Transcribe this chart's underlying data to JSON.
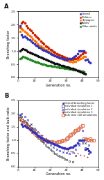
{
  "panel_A": {
    "title": "A",
    "xlabel": "Generation no.",
    "ylabel": "Branching factor",
    "xlim": [
      0,
      50
    ],
    "ylim": [
      0.0,
      2.5
    ],
    "yticks": [
      0.0,
      0.5,
      1.0,
      1.5,
      2.0,
      2.5
    ],
    "legend": [
      "Overall",
      "Children",
      "Teenagers",
      "Adults",
      "Older adults"
    ],
    "colors": [
      "#3333bb",
      "#cc2200",
      "#ff7700",
      "#111111",
      "#228822"
    ],
    "overall_x": [
      1,
      2,
      3,
      4,
      5,
      6,
      7,
      8,
      9,
      10,
      11,
      12,
      13,
      14,
      15,
      16,
      17,
      18,
      19,
      20,
      21,
      22,
      23,
      24,
      25,
      26,
      27,
      28,
      29,
      30,
      31,
      32,
      33,
      34,
      35,
      36,
      37,
      38,
      39,
      40,
      41,
      42,
      43,
      44,
      45
    ],
    "overall_y": [
      1.95,
      1.6,
      1.52,
      1.55,
      1.5,
      1.46,
      1.42,
      1.38,
      1.32,
      1.28,
      1.22,
      1.18,
      1.14,
      1.1,
      1.06,
      1.03,
      1.0,
      0.97,
      0.94,
      0.91,
      0.88,
      0.85,
      0.83,
      0.8,
      0.77,
      0.75,
      0.73,
      0.71,
      0.69,
      0.67,
      0.68,
      0.7,
      0.72,
      0.74,
      0.78,
      0.82,
      0.9,
      1.0,
      1.0,
      1.0,
      1.0,
      0.65,
      0.68,
      0.6,
      0.55
    ],
    "children_x": [
      1,
      2,
      3,
      4,
      5,
      6,
      7,
      8,
      9,
      10,
      11,
      12,
      13,
      14,
      15,
      16,
      17,
      18,
      19,
      20,
      21,
      22,
      23,
      24,
      25,
      26,
      27,
      28,
      29,
      30,
      31,
      32,
      33,
      34,
      35,
      36,
      37,
      38,
      39,
      40,
      41,
      42
    ],
    "children_y": [
      1.9,
      2.05,
      2.1,
      2.05,
      1.95,
      1.88,
      1.82,
      1.76,
      1.68,
      1.62,
      1.56,
      1.5,
      1.44,
      1.38,
      1.32,
      1.26,
      1.2,
      1.15,
      1.1,
      1.05,
      1.02,
      0.98,
      0.94,
      0.91,
      0.88,
      0.85,
      0.82,
      0.79,
      0.76,
      0.73,
      0.72,
      0.7,
      0.68,
      0.68,
      0.7,
      0.72,
      0.75,
      0.8,
      0.85,
      0.9,
      0.95,
      0.95
    ],
    "teen_x": [
      1,
      2,
      3,
      4,
      5,
      6,
      7,
      8,
      9,
      10,
      11,
      12,
      13,
      14,
      15,
      16,
      17,
      18,
      19,
      20,
      21,
      22,
      23,
      24,
      25,
      26,
      27,
      28,
      29,
      30,
      31,
      32,
      33,
      34,
      35,
      36,
      37,
      38,
      39,
      40,
      41,
      42
    ],
    "teen_y": [
      1.75,
      1.85,
      1.8,
      1.75,
      1.7,
      1.64,
      1.58,
      1.52,
      1.46,
      1.4,
      1.34,
      1.28,
      1.22,
      1.18,
      1.14,
      1.1,
      1.06,
      1.02,
      0.98,
      0.94,
      0.9,
      0.87,
      0.84,
      0.81,
      0.78,
      0.75,
      0.72,
      0.69,
      0.67,
      0.65,
      0.63,
      0.62,
      0.6,
      0.59,
      0.6,
      0.62,
      0.65,
      0.68,
      0.72,
      0.75,
      0.78,
      0.8
    ],
    "adults_x": [
      1,
      2,
      3,
      4,
      5,
      6,
      7,
      8,
      9,
      10,
      11,
      12,
      13,
      14,
      15,
      16,
      17,
      18,
      19,
      20,
      21,
      22,
      23,
      24,
      25,
      26,
      27,
      28,
      29,
      30,
      31,
      32,
      33,
      34,
      35,
      36,
      37,
      38,
      39,
      40,
      41,
      42
    ],
    "adults_y": [
      1.0,
      1.05,
      1.08,
      1.05,
      1.02,
      0.99,
      0.96,
      0.93,
      0.9,
      0.87,
      0.84,
      0.81,
      0.78,
      0.76,
      0.73,
      0.7,
      0.68,
      0.65,
      0.63,
      0.61,
      0.58,
      0.56,
      0.54,
      0.52,
      0.5,
      0.48,
      0.46,
      0.44,
      0.42,
      0.4,
      0.39,
      0.37,
      0.35,
      0.33,
      0.31,
      0.29,
      0.27,
      0.24,
      0.21,
      0.18,
      0.15,
      0.12
    ],
    "older_x": [
      1,
      2,
      3,
      4,
      5,
      6,
      7,
      8,
      9,
      10,
      11,
      12,
      13,
      14,
      15,
      16,
      17,
      18,
      19,
      20,
      21,
      22,
      23,
      24,
      25,
      26,
      27,
      28,
      29,
      30,
      31,
      32,
      33,
      34,
      35,
      36,
      37,
      38,
      39,
      40,
      41
    ],
    "older_y": [
      0.72,
      0.75,
      0.78,
      0.76,
      0.73,
      0.7,
      0.68,
      0.66,
      0.63,
      0.61,
      0.59,
      0.57,
      0.55,
      0.53,
      0.51,
      0.49,
      0.47,
      0.46,
      0.45,
      0.44,
      0.43,
      0.42,
      0.41,
      0.4,
      0.39,
      0.38,
      0.37,
      0.36,
      0.35,
      0.34,
      0.33,
      0.32,
      0.31,
      0.3,
      0.29,
      0.28,
      0.27,
      0.26,
      0.25,
      0.24,
      0.22
    ]
  },
  "panel_B": {
    "title": "B",
    "xlabel": "Generation no.",
    "ylabel": "Branching factor and bulk ratio",
    "xlim": [
      0,
      50
    ],
    "ylim": [
      0.0,
      2.5
    ],
    "yticks": [
      0.0,
      0.5,
      1.0,
      1.5,
      2.0,
      2.5
    ],
    "legend": [
      "Overall branching factor",
      "Individual simulation 1",
      "Individual simulation 2",
      "Individual simulation 3",
      "Bulk ratio 100 simulations"
    ],
    "col_overall": "#3333bb",
    "col_sim1": "#444444",
    "col_sim2": "#3333bb",
    "col_sim3": "#993333",
    "col_bulk": "#dd7755",
    "overall_x": [
      1,
      2,
      3,
      4,
      5,
      6,
      7,
      8,
      9,
      10,
      11,
      12,
      13,
      14,
      15,
      16,
      17,
      18,
      19,
      20,
      21,
      22,
      23,
      24,
      25,
      26,
      27,
      28,
      29,
      30,
      31,
      32,
      33,
      34,
      35,
      36,
      37,
      38,
      39,
      40,
      41,
      42,
      43,
      44,
      45
    ],
    "overall_y": [
      1.95,
      1.6,
      1.52,
      1.55,
      1.5,
      1.46,
      1.42,
      1.38,
      1.32,
      1.28,
      1.22,
      1.18,
      1.14,
      1.1,
      1.06,
      1.03,
      1.0,
      0.97,
      0.94,
      0.91,
      0.88,
      0.85,
      0.83,
      0.8,
      0.77,
      0.75,
      0.73,
      0.71,
      0.69,
      0.67,
      0.68,
      0.7,
      0.72,
      0.74,
      0.78,
      0.82,
      0.9,
      1.0,
      1.0,
      1.0,
      1.0,
      0.65,
      0.68,
      0.6,
      0.55
    ],
    "sim1_x": [
      1,
      2,
      3,
      4,
      5,
      6,
      7,
      8,
      9,
      10,
      11,
      12,
      13,
      14,
      15,
      16,
      17,
      18,
      19,
      20,
      21,
      22,
      23,
      24,
      25,
      26,
      27,
      28,
      29,
      30,
      32,
      34,
      36,
      38,
      40,
      42,
      44
    ],
    "sim1_y": [
      1.85,
      1.9,
      1.7,
      1.72,
      1.65,
      1.6,
      1.54,
      1.48,
      1.42,
      1.36,
      1.25,
      1.15,
      1.06,
      1.0,
      0.94,
      0.88,
      0.82,
      0.76,
      0.7,
      0.65,
      0.6,
      0.55,
      0.5,
      0.46,
      0.42,
      0.38,
      0.35,
      0.32,
      0.28,
      0.25,
      0.2,
      0.18,
      0.4,
      0.85,
      0.9,
      0.7,
      0.5
    ],
    "sim2_x": [
      2,
      4,
      6,
      8,
      10,
      12,
      14,
      16,
      18,
      20,
      22,
      24,
      26,
      28,
      30,
      32,
      34,
      36,
      38,
      40,
      42,
      44
    ],
    "sim2_y": [
      2.0,
      1.9,
      1.75,
      1.6,
      1.45,
      1.32,
      1.18,
      1.05,
      0.92,
      0.82,
      0.72,
      0.65,
      0.6,
      0.55,
      0.52,
      0.5,
      0.55,
      0.65,
      0.8,
      1.35,
      0.9,
      0.8
    ],
    "sim3_x": [
      1,
      3,
      5,
      7,
      9,
      11,
      13,
      15,
      17,
      19,
      21,
      23,
      25,
      27,
      29,
      31,
      33,
      35,
      37,
      39,
      41,
      43
    ],
    "sim3_y": [
      1.75,
      1.78,
      1.68,
      1.58,
      1.48,
      1.38,
      1.28,
      1.18,
      1.08,
      0.98,
      0.88,
      0.82,
      0.76,
      0.7,
      0.64,
      0.6,
      0.56,
      0.52,
      0.48,
      0.44,
      0.4,
      0.36
    ],
    "bulk_x": [
      1,
      2,
      3,
      4,
      5,
      6,
      7,
      8,
      9,
      10,
      11,
      12,
      13,
      14,
      15,
      16,
      17,
      18,
      19,
      20,
      21,
      22,
      23,
      24,
      25,
      26,
      27,
      28,
      29,
      30,
      31,
      32,
      33,
      34,
      35,
      36,
      37,
      38,
      39,
      40,
      41,
      42,
      43,
      44,
      45,
      46,
      47
    ],
    "bulk_y": [
      1.82,
      1.75,
      1.68,
      1.62,
      1.56,
      1.5,
      1.44,
      1.38,
      1.32,
      1.26,
      1.2,
      1.14,
      1.1,
      1.06,
      1.02,
      1.0,
      0.98,
      0.96,
      0.95,
      0.94,
      0.93,
      0.92,
      0.91,
      0.92,
      0.93,
      0.94,
      0.96,
      0.98,
      1.0,
      1.05,
      1.1,
      1.15,
      1.2,
      1.25,
      1.3,
      1.35,
      1.4,
      1.45,
      1.5,
      1.55,
      1.05,
      1.05,
      1.02,
      1.0,
      1.05,
      0.98,
      1.0
    ]
  }
}
